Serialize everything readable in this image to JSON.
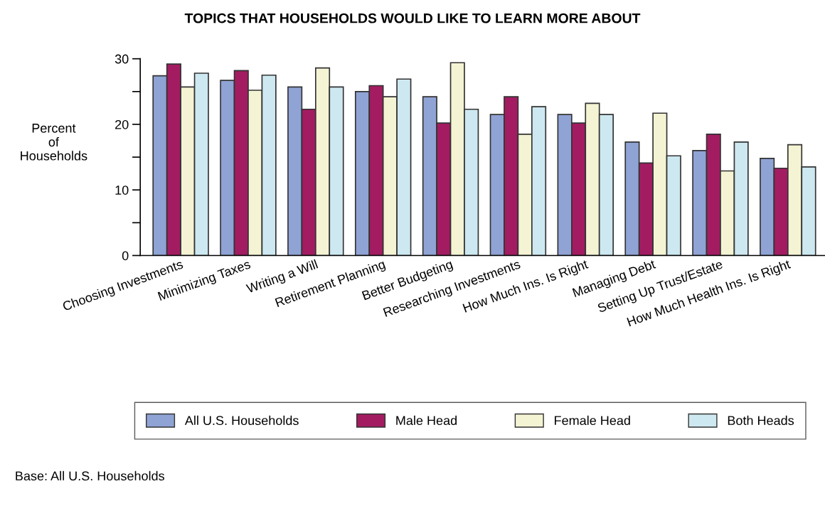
{
  "chart_data": {
    "type": "bar",
    "title": "TOPICS THAT HOUSEHOLDS WOULD LIKE TO LEARN MORE ABOUT",
    "ylabel": "Percent\nof\nHouseholds",
    "categories": [
      "Choosing Investments",
      "Minimizing Taxes",
      "Writing a Will",
      "Retirement Planning",
      "Better Budgeting",
      "Researching Investments",
      "How Much Ins. Is Right",
      "Managing Debt",
      "Setting Up Trust/Estate",
      "How Much Health Ins. Is Right"
    ],
    "series": [
      {
        "name": "All U.S. Households",
        "color": "#8fa3d4",
        "values": [
          27.4,
          26.7,
          25.7,
          25.0,
          24.2,
          21.5,
          21.5,
          17.3,
          16.0,
          14.8
        ]
      },
      {
        "name": "Male Head",
        "color": "#a31c62",
        "values": [
          29.2,
          28.2,
          22.3,
          25.9,
          20.2,
          24.2,
          20.2,
          14.1,
          18.5,
          13.3
        ]
      },
      {
        "name": "Female Head",
        "color": "#f4f3d3",
        "values": [
          25.7,
          25.2,
          28.6,
          24.2,
          29.4,
          18.5,
          23.2,
          21.7,
          12.9,
          16.9
        ]
      },
      {
        "name": "Both Heads",
        "color": "#cde8f0",
        "values": [
          27.8,
          27.5,
          25.7,
          26.9,
          22.3,
          22.7,
          21.5,
          15.2,
          17.3,
          13.5
        ]
      }
    ],
    "ylim": [
      0,
      30
    ],
    "yticks": [
      0,
      {
        "value": 5,
        "label": null
      },
      10,
      {
        "value": 15,
        "label": null
      },
      20,
      {
        "value": 25,
        "label": null
      },
      30
    ],
    "legend": "bottom",
    "grid": false,
    "annotations": [
      "Base: All U.S. Households"
    ]
  }
}
